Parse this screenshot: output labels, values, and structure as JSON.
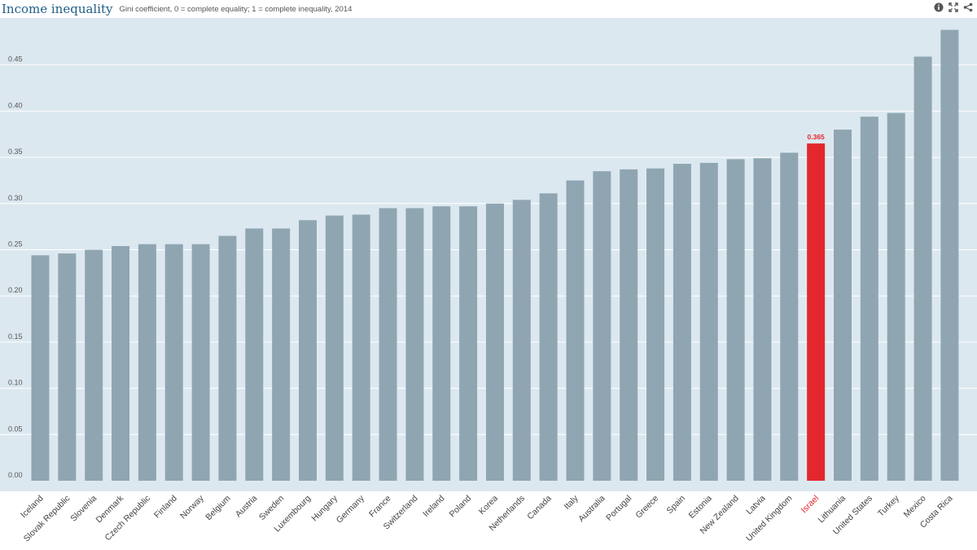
{
  "header": {
    "title": "Income inequality",
    "subtitle": "Gini coefficient, 0 = complete equality; 1 = complete inequality, 2014",
    "icons": [
      "info-icon",
      "fullscreen-icon",
      "share-icon"
    ]
  },
  "colors": {
    "bar": "#8fa6b2",
    "highlight": "#e3272e",
    "plot_bg": "#dce8f0",
    "grid": "#ffffff",
    "highlight_label": "#e3272e"
  },
  "chart_data": {
    "type": "bar",
    "title": "Income inequality",
    "subtitle": "Gini coefficient, 0 = complete equality; 1 = complete inequality, 2014",
    "xlabel": "",
    "ylabel": "",
    "ylim": [
      0,
      0.5
    ],
    "yticks": [
      "0.00",
      "0.05",
      "0.10",
      "0.15",
      "0.20",
      "0.25",
      "0.30",
      "0.35",
      "0.40",
      "0.45"
    ],
    "grid": true,
    "categories": [
      "Iceland",
      "Slovak Republic",
      "Slovenia",
      "Denmark",
      "Czech Republic",
      "Finland",
      "Norway",
      "Belgium",
      "Austria",
      "Sweden",
      "Luxembourg",
      "Hungary",
      "Germany",
      "France",
      "Switzerland",
      "Ireland",
      "Poland",
      "Korea",
      "Netherlands",
      "Canada",
      "Italy",
      "Australia",
      "Portugal",
      "Greece",
      "Spain",
      "Estonia",
      "New Zealand",
      "Latvia",
      "United Kingdom",
      "Israel",
      "Lithuania",
      "United States",
      "Turkey",
      "Mexico",
      "Costa Rica"
    ],
    "values": [
      0.244,
      0.246,
      0.25,
      0.254,
      0.256,
      0.256,
      0.256,
      0.265,
      0.273,
      0.273,
      0.282,
      0.287,
      0.288,
      0.295,
      0.295,
      0.297,
      0.297,
      0.3,
      0.304,
      0.311,
      0.325,
      0.335,
      0.337,
      0.338,
      0.343,
      0.344,
      0.348,
      0.349,
      0.355,
      0.365,
      0.38,
      0.394,
      0.398,
      0.459,
      0.488
    ],
    "highlight": "Israel",
    "data_labels": [
      {
        "category": "Israel",
        "text": "0.365"
      }
    ]
  }
}
